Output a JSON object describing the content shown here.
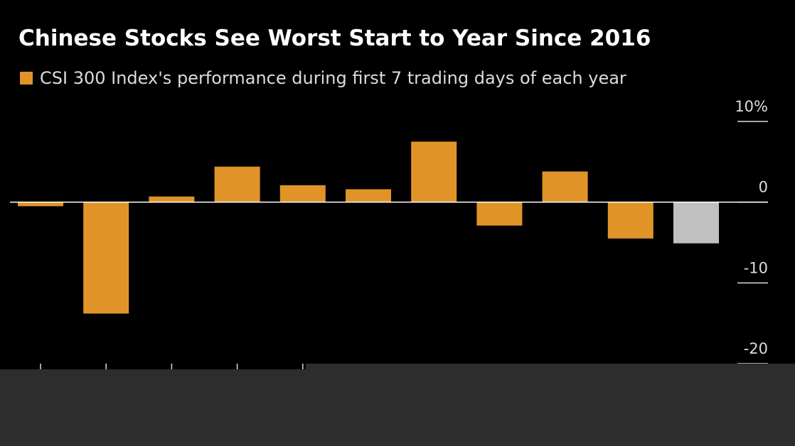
{
  "chart_data": {
    "type": "bar",
    "title": "Chinese Stocks See Worst Start to Year Since 2016",
    "series": [
      {
        "name": "CSI 300 Index's performance during first 7 trading days of each year",
        "values": [
          -0.5,
          -13.8,
          0.7,
          4.4,
          2.1,
          1.6,
          7.5,
          -2.9,
          3.8,
          -4.5,
          -5.1
        ]
      }
    ],
    "highlight_index": 10,
    "colors": {
      "bar": "#e09428",
      "highlight": "#c0c0c0",
      "zero_line": "#ffffff",
      "text": "#dcdcdc",
      "background": "#000000"
    },
    "ylim": [
      -20,
      10
    ],
    "yticks": [
      {
        "value": 10,
        "label": "10%"
      },
      {
        "value": 0,
        "label": "0"
      },
      {
        "value": -10,
        "label": "-10"
      },
      {
        "value": -20,
        "label": "-20"
      }
    ],
    "xlabel": "",
    "ylabel": "",
    "grid": false,
    "legend_position": "top-left"
  }
}
